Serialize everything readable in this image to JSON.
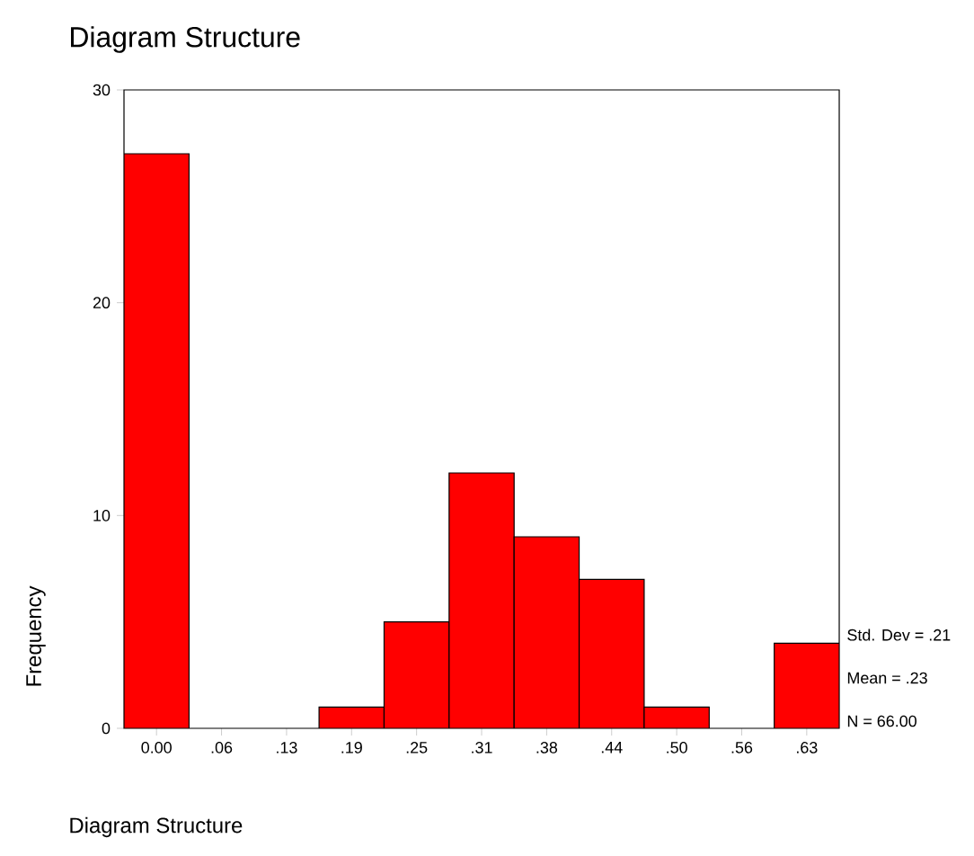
{
  "chart_data": {
    "type": "histogram",
    "title": "Diagram Structure",
    "xlabel": "Diagram Structure",
    "ylabel": "Frequency",
    "bins": [
      -0.03125,
      0.03125,
      0.09375,
      0.15625,
      0.21875,
      0.28125,
      0.34375,
      0.40625,
      0.46875,
      0.53125,
      0.59375,
      0.65625
    ],
    "values": [
      27,
      0,
      0,
      1,
      5,
      12,
      9,
      7,
      1,
      0,
      4
    ],
    "color": "#ff0000",
    "xlim": [
      -0.03125,
      0.65625
    ],
    "ylim": [
      0,
      30
    ],
    "xticks": [
      {
        "value": 0,
        "label": "0.00"
      },
      {
        "value": 0.0625,
        "label": ".06"
      },
      {
        "value": 0.125,
        "label": ".13"
      },
      {
        "value": 0.1875,
        "label": ".19"
      },
      {
        "value": 0.25,
        "label": ".25"
      },
      {
        "value": 0.3125,
        "label": ".31"
      },
      {
        "value": 0.375,
        "label": ".38"
      },
      {
        "value": 0.4375,
        "label": ".44"
      },
      {
        "value": 0.5,
        "label": ".50"
      },
      {
        "value": 0.5625,
        "label": ".56"
      },
      {
        "value": 0.625,
        "label": ".63"
      }
    ],
    "yticks": [
      0,
      10,
      20,
      30
    ],
    "annotations": [
      "Std. Dev = .21",
      "Mean = .23",
      "N = 66.00"
    ]
  }
}
